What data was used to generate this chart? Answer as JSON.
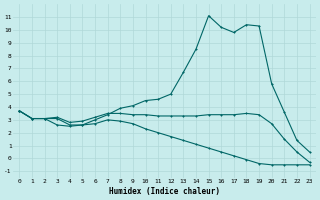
{
  "xlabel": "Humidex (Indice chaleur)",
  "bg_color": "#c8ecec",
  "grid_color": "#b0d8d8",
  "line_color": "#006666",
  "xlim": [
    -0.5,
    23.5
  ],
  "ylim": [
    -1.5,
    12
  ],
  "yticks": [
    -1,
    0,
    1,
    2,
    3,
    4,
    5,
    6,
    7,
    8,
    9,
    10,
    11
  ],
  "xticks": [
    0,
    1,
    2,
    3,
    4,
    5,
    6,
    7,
    8,
    9,
    10,
    11,
    12,
    13,
    14,
    15,
    16,
    17,
    18,
    19,
    20,
    21,
    22,
    23
  ],
  "line1_x": [
    0,
    1,
    2,
    3,
    4,
    5,
    6,
    7,
    8,
    9,
    10,
    11,
    12,
    13,
    14,
    15,
    16,
    17,
    18,
    19,
    20,
    21,
    22,
    23
  ],
  "line1_y": [
    3.7,
    3.1,
    3.1,
    3.1,
    2.6,
    2.6,
    3.0,
    3.4,
    3.9,
    4.1,
    4.5,
    4.6,
    5.0,
    6.7,
    8.5,
    11.1,
    10.2,
    9.8,
    10.4,
    10.3,
    5.8,
    3.6,
    1.4,
    0.5
  ],
  "line2_x": [
    0,
    1,
    2,
    3,
    4,
    5,
    6,
    7,
    8,
    9,
    10,
    11,
    12,
    13,
    14,
    15,
    16,
    17,
    18,
    19,
    20,
    21,
    22,
    23
  ],
  "line2_y": [
    3.7,
    3.1,
    3.1,
    3.2,
    2.8,
    2.9,
    3.2,
    3.5,
    3.5,
    3.4,
    3.4,
    3.3,
    3.3,
    3.3,
    3.3,
    3.4,
    3.4,
    3.4,
    3.5,
    3.4,
    2.7,
    1.5,
    0.5,
    -0.3
  ],
  "line3_x": [
    0,
    1,
    2,
    3,
    4,
    5,
    6,
    7,
    8,
    9,
    10,
    11,
    12,
    13,
    14,
    15,
    16,
    17,
    18,
    19,
    20,
    21,
    22,
    23
  ],
  "line3_y": [
    3.7,
    3.1,
    3.1,
    2.6,
    2.5,
    2.6,
    2.7,
    3.0,
    2.9,
    2.7,
    2.3,
    2.0,
    1.7,
    1.4,
    1.1,
    0.8,
    0.5,
    0.2,
    -0.1,
    -0.4,
    -0.5,
    -0.5,
    -0.5,
    -0.5
  ]
}
